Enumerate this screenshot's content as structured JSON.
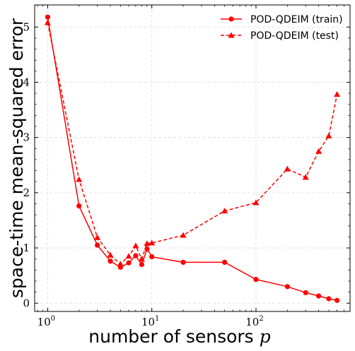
{
  "chart_data": {
    "type": "line",
    "xscale": "log",
    "xlim": [
      0.75,
      800
    ],
    "ylim": [
      -0.15,
      5.4
    ],
    "grid": true,
    "legend_position": "top-right",
    "xlabel": "number of sensors",
    "xlabel_symbol": "p",
    "ylabel": "space-time mean-squared error",
    "xticks": [
      {
        "value": 1,
        "base": "10",
        "exp": "0"
      },
      {
        "value": 10,
        "base": "10",
        "exp": "1"
      },
      {
        "value": 100,
        "base": "10",
        "exp": "2"
      }
    ],
    "yticks": [
      0,
      1,
      2,
      3,
      4,
      5
    ],
    "colors": {
      "series": "#ff0000",
      "grid": "#dcdcdc",
      "axis": "#000000"
    },
    "series": [
      {
        "name": "POD-QDEIM (train)",
        "linestyle": "solid",
        "marker": "circle",
        "x": [
          1,
          2,
          3,
          4,
          5,
          6,
          7,
          8,
          9,
          10,
          20,
          50,
          100,
          200,
          300,
          400,
          500,
          600
        ],
        "y": [
          5.18,
          1.76,
          1.05,
          0.76,
          0.65,
          0.73,
          0.86,
          0.7,
          0.98,
          0.84,
          0.74,
          0.74,
          0.43,
          0.3,
          0.19,
          0.13,
          0.08,
          0.05
        ]
      },
      {
        "name": "POD-QDEIM (test)",
        "linestyle": "dashed",
        "marker": "triangle",
        "x": [
          1,
          2,
          3,
          4,
          5,
          6,
          7,
          8,
          9,
          10,
          20,
          50,
          100,
          200,
          300,
          400,
          500,
          600
        ],
        "y": [
          5.08,
          2.24,
          1.19,
          0.87,
          0.71,
          0.85,
          1.04,
          0.8,
          1.08,
          1.09,
          1.23,
          1.67,
          1.82,
          2.43,
          2.28,
          2.75,
          3.03,
          3.78
        ]
      }
    ]
  }
}
